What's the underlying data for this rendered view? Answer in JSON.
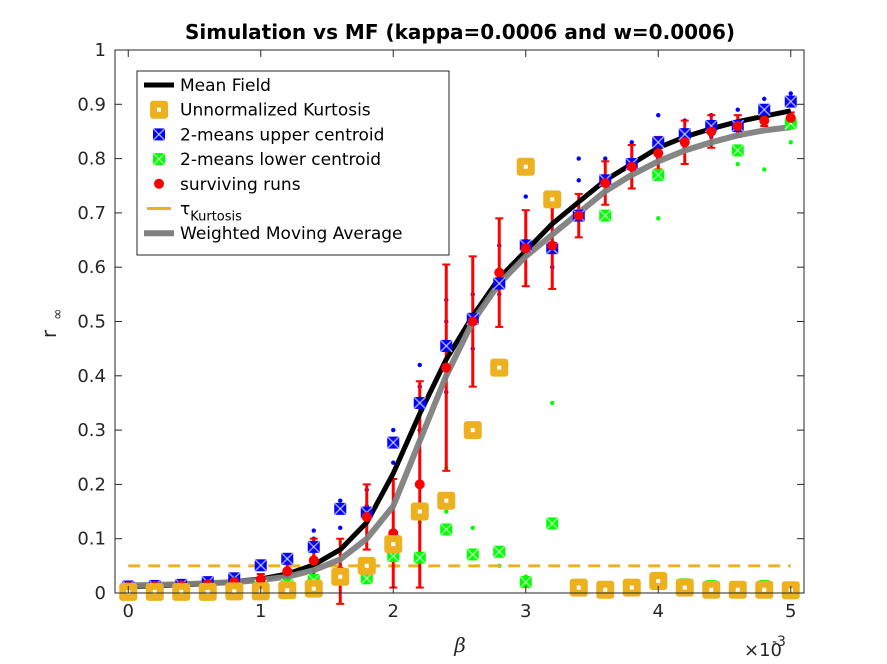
{
  "chart_data": {
    "type": "scatter",
    "title": "Simulation vs MF (kappa=0.0006 and w=0.0006)",
    "xlabel": "β",
    "ylabel": "r",
    "ylabel_sub": "∞",
    "x_exponent_base": "×10",
    "x_exponent": "-3",
    "xlim": [
      -0.0001,
      0.0051
    ],
    "ylim": [
      0,
      1
    ],
    "xticks": [
      0,
      0.001,
      0.002,
      0.003,
      0.004,
      0.005
    ],
    "xtick_labels": [
      "0",
      "1",
      "2",
      "3",
      "4",
      "5"
    ],
    "yticks": [
      0,
      0.1,
      0.2,
      0.3,
      0.4,
      0.5,
      0.6,
      0.7,
      0.8,
      0.9,
      1
    ],
    "ytick_labels": [
      "0",
      "0.1",
      "0.2",
      "0.3",
      "0.4",
      "0.5",
      "0.6",
      "0.7",
      "0.8",
      "0.9",
      "1"
    ],
    "grid": false,
    "legend_position": "top-left",
    "legend": [
      {
        "label": "Mean Field",
        "color": "#000000",
        "style": "line"
      },
      {
        "label": "Unnormalized Kurtosis",
        "color": "#EDB120",
        "style": "square"
      },
      {
        "label": "2-means upper centroid",
        "color": "#0000FF",
        "style": "errmark"
      },
      {
        "label": "2-means lower centroid",
        "color": "#00FF00",
        "style": "errmark"
      },
      {
        "label": "surviving runs",
        "color": "#FF0000",
        "style": "errmark"
      },
      {
        "label": "τ",
        "label_sub": "Kurtosis",
        "color": "#EDB120",
        "style": "dash"
      },
      {
        "label": "Weighted Moving Average",
        "color": "#808080",
        "style": "thickline"
      }
    ],
    "series": [
      {
        "name": "Mean Field",
        "kind": "line",
        "color": "#000000",
        "x": [
          0,
          0.0002,
          0.0004,
          0.0006,
          0.0008,
          0.001,
          0.0012,
          0.0014,
          0.0016,
          0.0018,
          0.002,
          0.0022,
          0.0024,
          0.0026,
          0.0028,
          0.003,
          0.0032,
          0.0034,
          0.0036,
          0.0038,
          0.004,
          0.0042,
          0.0044,
          0.0046,
          0.0048,
          0.005
        ],
        "y": [
          0.012,
          0.013,
          0.015,
          0.017,
          0.021,
          0.026,
          0.035,
          0.052,
          0.08,
          0.13,
          0.22,
          0.33,
          0.43,
          0.51,
          0.58,
          0.63,
          0.68,
          0.72,
          0.76,
          0.79,
          0.82,
          0.84,
          0.855,
          0.868,
          0.878,
          0.888
        ]
      },
      {
        "name": "Weighted Moving Average",
        "kind": "line",
        "color": "#808080",
        "x": [
          0,
          0.0002,
          0.0004,
          0.0006,
          0.0008,
          0.001,
          0.0012,
          0.0014,
          0.0016,
          0.0018,
          0.002,
          0.0022,
          0.0024,
          0.0026,
          0.0028,
          0.003,
          0.0032,
          0.0034,
          0.0036,
          0.0038,
          0.004,
          0.0042,
          0.0044,
          0.0046,
          0.0048,
          0.005
        ],
        "y": [
          0.014,
          0.015,
          0.016,
          0.018,
          0.02,
          0.024,
          0.03,
          0.042,
          0.062,
          0.1,
          0.16,
          0.28,
          0.4,
          0.5,
          0.57,
          0.62,
          0.66,
          0.7,
          0.74,
          0.77,
          0.795,
          0.815,
          0.83,
          0.843,
          0.852,
          0.858
        ]
      },
      {
        "name": "τKurtosis",
        "kind": "dashed",
        "color": "#EDB120",
        "x": [
          0,
          0.005
        ],
        "y": [
          0.05,
          0.05
        ]
      },
      {
        "name": "Unnormalized Kurtosis",
        "kind": "square",
        "color": "#EDB120",
        "x": [
          0,
          0.0002,
          0.0004,
          0.0006,
          0.0008,
          0.001,
          0.0012,
          0.0014,
          0.0016,
          0.0018,
          0.002,
          0.0022,
          0.0024,
          0.0026,
          0.0028,
          0.003,
          0.0032,
          0.0034,
          0.0036,
          0.0038,
          0.004,
          0.0042,
          0.0044,
          0.0046,
          0.0048,
          0.005
        ],
        "y": [
          0.002,
          0.002,
          0.002,
          0.002,
          0.003,
          0.003,
          0.005,
          0.008,
          0.03,
          0.05,
          0.09,
          0.15,
          0.17,
          0.3,
          0.415,
          0.785,
          0.725,
          0.01,
          0.006,
          0.01,
          0.022,
          0.01,
          0.006,
          0.006,
          0.006,
          0.005
        ]
      },
      {
        "name": "2-means upper centroid",
        "kind": "errmark",
        "color": "#0000FF",
        "x": [
          0,
          0.0002,
          0.0004,
          0.0006,
          0.0008,
          0.001,
          0.0012,
          0.0014,
          0.0016,
          0.0018,
          0.002,
          0.0022,
          0.0024,
          0.0026,
          0.0028,
          0.003,
          0.0032,
          0.0034,
          0.0036,
          0.0038,
          0.004,
          0.0042,
          0.0044,
          0.0046,
          0.0048,
          0.005
        ],
        "y": [
          0.012,
          0.013,
          0.015,
          0.02,
          0.027,
          0.051,
          0.063,
          0.085,
          0.155,
          0.148,
          0.277,
          0.35,
          0.455,
          0.505,
          0.57,
          0.64,
          0.635,
          0.695,
          0.76,
          0.79,
          0.83,
          0.845,
          0.86,
          0.86,
          0.89,
          0.905
        ]
      },
      {
        "name": "2-means lower centroid",
        "kind": "errmark",
        "color": "#00FF00",
        "x": [
          0,
          0.0002,
          0.0004,
          0.0006,
          0.0008,
          0.001,
          0.0012,
          0.0014,
          0.0016,
          0.0018,
          0.002,
          0.0022,
          0.0024,
          0.0026,
          0.0028,
          0.003,
          0.0032,
          0.0034,
          0.0036,
          0.0038,
          0.004,
          0.0042,
          0.0044,
          0.0046,
          0.0048,
          0.005
        ],
        "y": [
          0.008,
          0.009,
          0.01,
          0.01,
          0.012,
          0.013,
          0.015,
          0.024,
          0.033,
          0.027,
          0.068,
          0.065,
          0.117,
          0.071,
          0.076,
          0.02,
          0.128,
          0.01,
          0.695,
          0.01,
          0.77,
          0.016,
          0.013,
          0.815,
          0.013,
          0.865
        ]
      },
      {
        "name": "surviving runs",
        "kind": "errmark",
        "color": "#FF0000",
        "x": [
          0,
          0.0002,
          0.0004,
          0.0006,
          0.0008,
          0.001,
          0.0012,
          0.0014,
          0.0016,
          0.0018,
          0.002,
          0.0022,
          0.0024,
          0.0026,
          0.0028,
          0.003,
          0.0032,
          0.0034,
          0.0036,
          0.0038,
          0.004,
          0.0042,
          0.0044,
          0.0046,
          0.0048,
          0.005
        ],
        "y": [
          0.012,
          0.013,
          0.014,
          0.016,
          0.02,
          0.025,
          0.04,
          0.06,
          0.04,
          0.14,
          0.11,
          0.2,
          0.415,
          0.5,
          0.59,
          0.635,
          0.64,
          0.695,
          0.755,
          0.785,
          0.81,
          0.83,
          0.85,
          0.86,
          0.87,
          0.875
        ],
        "err": [
          0.004,
          0.004,
          0.004,
          0.005,
          0.006,
          0.01,
          0.02,
          0.04,
          0.06,
          0.06,
          0.1,
          0.19,
          0.19,
          0.12,
          0.1,
          0.07,
          0.08,
          0.04,
          0.04,
          0.04,
          0.03,
          0.04,
          0.03,
          0.02,
          0.01,
          0.01
        ]
      },
      {
        "name": "individual runs",
        "kind": "dots",
        "color": "#0000FF",
        "x": [
          0.0014,
          0.0014,
          0.0016,
          0.0016,
          0.0018,
          0.0018,
          0.002,
          0.002,
          0.0022,
          0.0022,
          0.0022,
          0.0024,
          0.0024,
          0.0024,
          0.0026,
          0.0026,
          0.0028,
          0.0028,
          0.003,
          0.003,
          0.0032,
          0.0032,
          0.0034,
          0.0034,
          0.0036,
          0.0036,
          0.0038,
          0.0038,
          0.004,
          0.004,
          0.0042,
          0.0042,
          0.0044,
          0.0044,
          0.0046,
          0.0046,
          0.0048,
          0.0048,
          0.005,
          0.005
        ],
        "y": [
          0.115,
          0.1,
          0.17,
          0.12,
          0.19,
          0.16,
          0.3,
          0.24,
          0.42,
          0.38,
          0.3,
          0.54,
          0.5,
          0.37,
          0.55,
          0.45,
          0.64,
          0.55,
          0.73,
          0.65,
          0.71,
          0.6,
          0.8,
          0.76,
          0.8,
          0.75,
          0.83,
          0.78,
          0.88,
          0.8,
          0.87,
          0.82,
          0.88,
          0.84,
          0.89,
          0.85,
          0.91,
          0.88,
          0.92,
          0.9
        ]
      },
      {
        "name": "individual runs lower",
        "kind": "dots",
        "color": "#00FF00",
        "x": [
          0.0016,
          0.0018,
          0.002,
          0.0022,
          0.0024,
          0.0024,
          0.0026,
          0.0028,
          0.003,
          0.0032,
          0.0034,
          0.0036,
          0.004,
          0.0044,
          0.0046,
          0.0048,
          0.005
        ],
        "y": [
          0.05,
          0.06,
          0.1,
          0.13,
          0.15,
          0.23,
          0.12,
          0.05,
          0.03,
          0.35,
          0.02,
          0.74,
          0.69,
          0.02,
          0.79,
          0.78,
          0.83
        ]
      }
    ]
  }
}
